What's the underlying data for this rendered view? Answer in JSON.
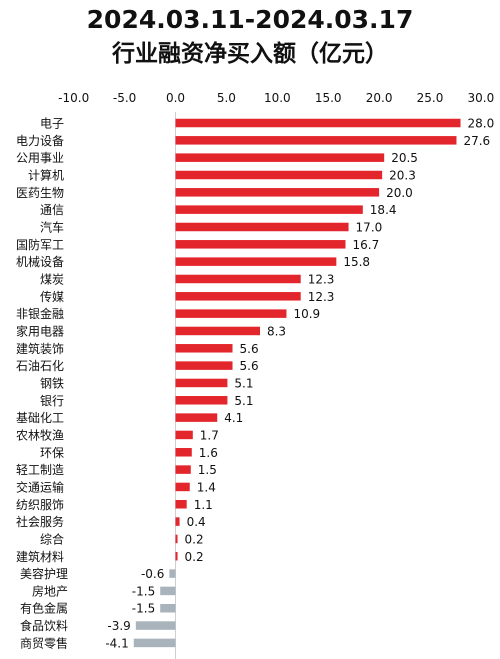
{
  "chart_data": {
    "type": "bar",
    "orientation": "horizontal",
    "title": "2024.03.11-2024.03.17",
    "subtitle": "行业融资净买入额（亿元）",
    "x_ticks": [
      "-10.0",
      "-5.0",
      "0.0",
      "5.0",
      "10.0",
      "15.0",
      "20.0",
      "25.0",
      "30.0"
    ],
    "xlim": [
      -10,
      30
    ],
    "axis_position": "top",
    "colors": {
      "positive": "#e3262b",
      "negative": "#a9b3bb"
    },
    "categories": [
      "电子",
      "电力设备",
      "公用事业",
      "计算机",
      "医药生物",
      "通信",
      "汽车",
      "国防军工",
      "机械设备",
      "煤炭",
      "传媒",
      "非银金融",
      "家用电器",
      "建筑装饰",
      "石油石化",
      "钢铁",
      "银行",
      "基础化工",
      "农林牧渔",
      "环保",
      "轻工制造",
      "交通运输",
      "纺织服饰",
      "社会服务",
      "综合",
      "建筑材料",
      "美容护理",
      "房地产",
      "有色金属",
      "食品饮料",
      "商贸零售"
    ],
    "values": [
      28.0,
      27.6,
      20.5,
      20.3,
      20.0,
      18.4,
      17.0,
      16.7,
      15.8,
      12.3,
      12.3,
      10.9,
      8.3,
      5.6,
      5.6,
      5.1,
      5.1,
      4.1,
      1.7,
      1.6,
      1.5,
      1.4,
      1.1,
      0.4,
      0.2,
      0.2,
      -0.6,
      -1.5,
      -1.5,
      -3.9,
      -4.1
    ],
    "value_labels": [
      "28.0",
      "27.6",
      "20.5",
      "20.3",
      "20.0",
      "18.4",
      "17.0",
      "16.7",
      "15.8",
      "12.3",
      "12.3",
      "10.9",
      "8.3",
      "5.6",
      "5.6",
      "5.1",
      "5.1",
      "4.1",
      "1.7",
      "1.6",
      "1.5",
      "1.4",
      "1.1",
      "0.4",
      "0.2",
      "0.2",
      "-0.6",
      "-1.5",
      "-1.5",
      "-3.9",
      "-4.1"
    ]
  }
}
